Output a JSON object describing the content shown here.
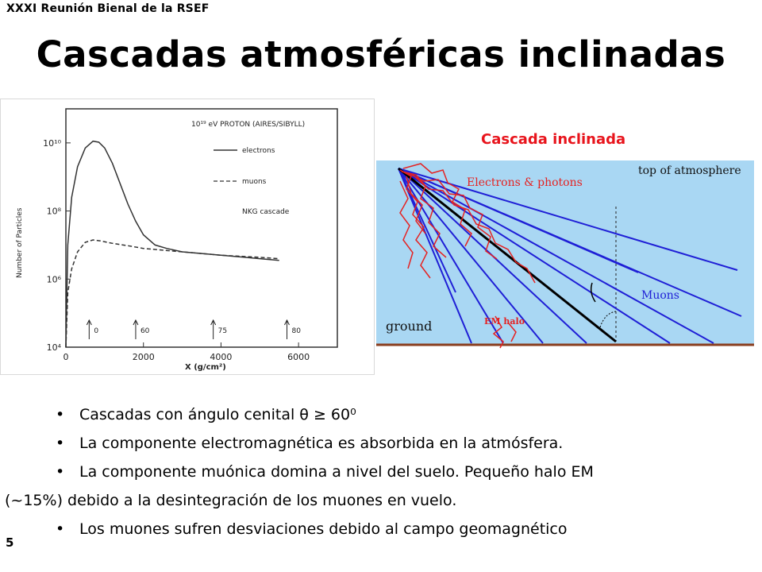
{
  "slide": {
    "header": "XXXI Reunión Bienal de la RSEF",
    "title": "Cascadas atmosféricas inclinadas",
    "page_number": "5"
  },
  "left_plot": {
    "legend_title": "10¹⁹ eV PROTON (AIRES/SIBYLL)",
    "legend": [
      "electrons",
      "muons",
      "NKG cascade"
    ],
    "ylabel": "Number of Particles",
    "xlabel": "X (g/cm²)",
    "x_ticks": [
      "0",
      "2000",
      "4000",
      "6000"
    ],
    "y_ticks": [
      "10⁴",
      "10⁶",
      "10⁸",
      "10¹⁰"
    ],
    "zenith_markers": [
      "0",
      "60",
      "75",
      "80"
    ]
  },
  "right_figure": {
    "caption": "Cascada inclinada",
    "labels": {
      "electrons_photons": "Electrons & photons",
      "top_atmosphere": "top of atmosphere",
      "muons": "Muons",
      "em_halo": "EM halo",
      "ground": "ground"
    },
    "colors": {
      "sky": "#a9d7f3",
      "ground": "#8a3d1e",
      "muon": "#1f1fd6",
      "em": "#e52222",
      "axis": "#000000"
    }
  },
  "bullets": [
    {
      "text": "Cascadas con ángulo cenital  θ ≥ 60⁰"
    },
    {
      "text": "La componente electromagnética es absorbida en la atmósfera."
    },
    {
      "text": "La componente muónica domina a nivel del suelo. Pequeño halo EM"
    },
    {
      "text": "Los muones sufren desviaciones debido al campo geomagnético"
    }
  ],
  "bullet_continuation": "(~15%) debido a la desintegración de los muones en vuelo.",
  "bullet_symbol": "•",
  "chart_data": {
    "type": "line",
    "title": "10¹⁹ eV PROTON (AIRES/SIBYLL)",
    "xlabel": "X (g/cm²)",
    "ylabel": "Number of Particles",
    "xlim": [
      0,
      7000
    ],
    "ylim_log10": [
      4,
      11
    ],
    "log_y": true,
    "legend_position": "top-right",
    "grid": false,
    "series": [
      {
        "name": "electrons",
        "style": "solid",
        "x": [
          0,
          50,
          150,
          300,
          500,
          700,
          850,
          1000,
          1200,
          1400,
          1600,
          1800,
          2000,
          2300,
          2600,
          3000,
          3500,
          4000,
          4500,
          5000,
          5500
        ],
        "log10_y": [
          4.0,
          7.0,
          8.4,
          9.3,
          9.85,
          10.05,
          10.02,
          9.85,
          9.4,
          8.8,
          8.2,
          7.7,
          7.3,
          7.0,
          6.9,
          6.8,
          6.75,
          6.7,
          6.65,
          6.6,
          6.55
        ]
      },
      {
        "name": "muons",
        "style": "dashed",
        "x": [
          0,
          50,
          150,
          300,
          500,
          700,
          900,
          1200,
          1600,
          2000,
          2500,
          3000,
          3500,
          4000,
          4500,
          5000,
          5500
        ],
        "log10_y": [
          4.0,
          5.6,
          6.3,
          6.8,
          7.08,
          7.15,
          7.12,
          7.05,
          6.98,
          6.9,
          6.85,
          6.8,
          6.75,
          6.7,
          6.67,
          6.64,
          6.6
        ]
      }
    ],
    "zenith_angle_markers": [
      {
        "x": 600,
        "label": "0"
      },
      {
        "x": 1800,
        "label": "60"
      },
      {
        "x": 3800,
        "label": "75"
      },
      {
        "x": 5700,
        "label": "80"
      }
    ]
  }
}
